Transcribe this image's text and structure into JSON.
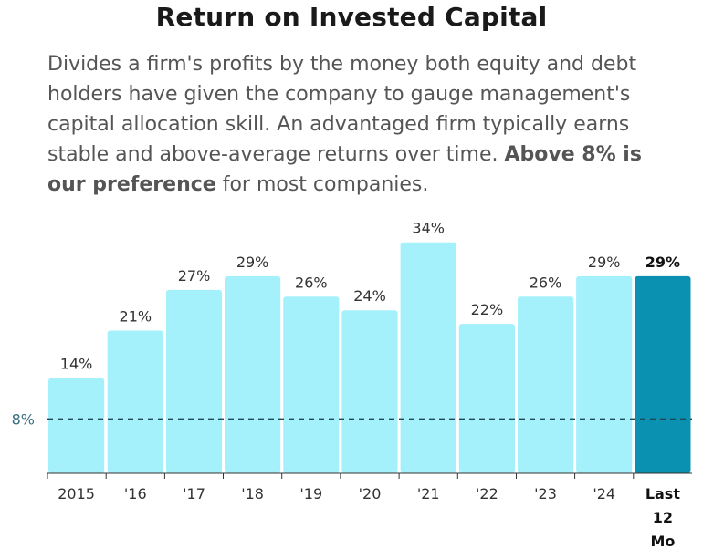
{
  "title": "Return on Invested Capital",
  "description": {
    "part1": "Divides a firm's profits by the money both equity and debt holders have given the company to gauge management's capital allocation skill. An advantaged firm typically earns stable and above-average returns over time. ",
    "bold": "Above 8% is our preference",
    "part2": " for most companies."
  },
  "colors": {
    "bar": "#a5f1fb",
    "highlight_bar": "#0a91b1",
    "reference_line": "#1e4a55"
  },
  "chart_data": {
    "type": "bar",
    "categories": [
      "2015",
      "'16",
      "'17",
      "'18",
      "'19",
      "'20",
      "'21",
      "'22",
      "'23",
      "'24",
      "Last 12 Mo"
    ],
    "values": [
      14,
      21,
      27,
      29,
      26,
      24,
      34,
      22,
      26,
      29,
      29
    ],
    "labels": [
      "14%",
      "21%",
      "27%",
      "29%",
      "26%",
      "24%",
      "34%",
      "22%",
      "26%",
      "29%",
      "29%"
    ],
    "highlight_index": 10,
    "reference_line": {
      "value": 8,
      "label": "8%"
    },
    "ylim": [
      0,
      37
    ],
    "grid": false
  }
}
